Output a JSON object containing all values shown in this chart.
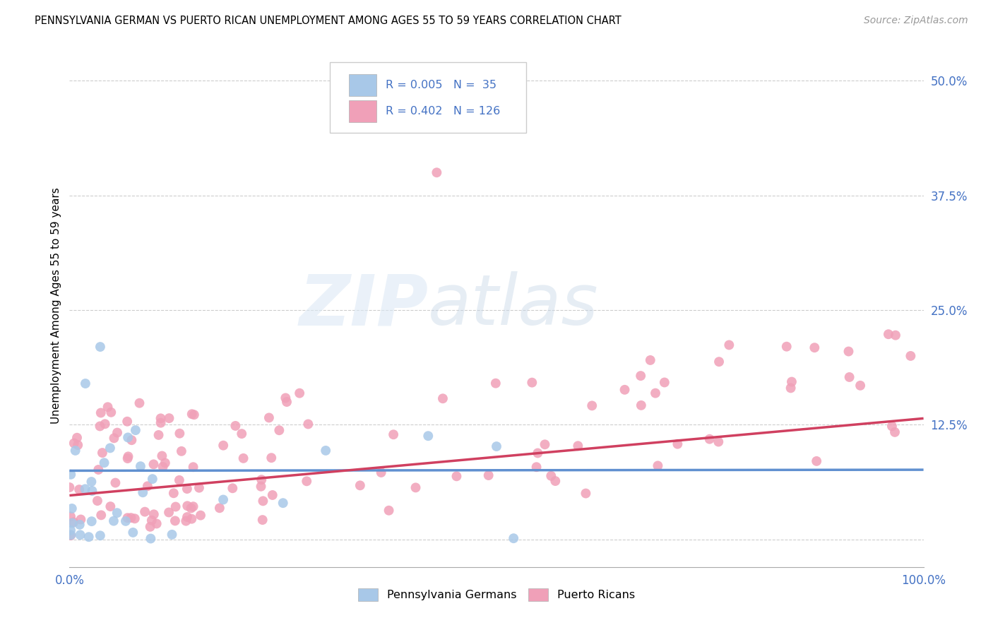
{
  "title": "PENNSYLVANIA GERMAN VS PUERTO RICAN UNEMPLOYMENT AMONG AGES 55 TO 59 YEARS CORRELATION CHART",
  "source": "Source: ZipAtlas.com",
  "ylabel": "Unemployment Among Ages 55 to 59 years",
  "xlim": [
    0.0,
    1.0
  ],
  "ylim": [
    -0.03,
    0.54
  ],
  "blue_R": "0.005",
  "blue_N": "35",
  "pink_R": "0.402",
  "pink_N": "126",
  "legend1": "Pennsylvania Germans",
  "legend2": "Puerto Ricans",
  "scatter_color_blue": "#a8c8e8",
  "scatter_color_pink": "#f0a0b8",
  "line_color_blue": "#6090d0",
  "line_color_pink": "#d04060",
  "text_color": "#4472c4",
  "grid_color": "#c8c8c8",
  "watermark_zip": "ZIP",
  "watermark_atlas": "atlas",
  "background": "#ffffff",
  "blue_line_y0": 0.075,
  "blue_line_y1": 0.076,
  "pink_line_y0": 0.048,
  "pink_line_y1": 0.132
}
